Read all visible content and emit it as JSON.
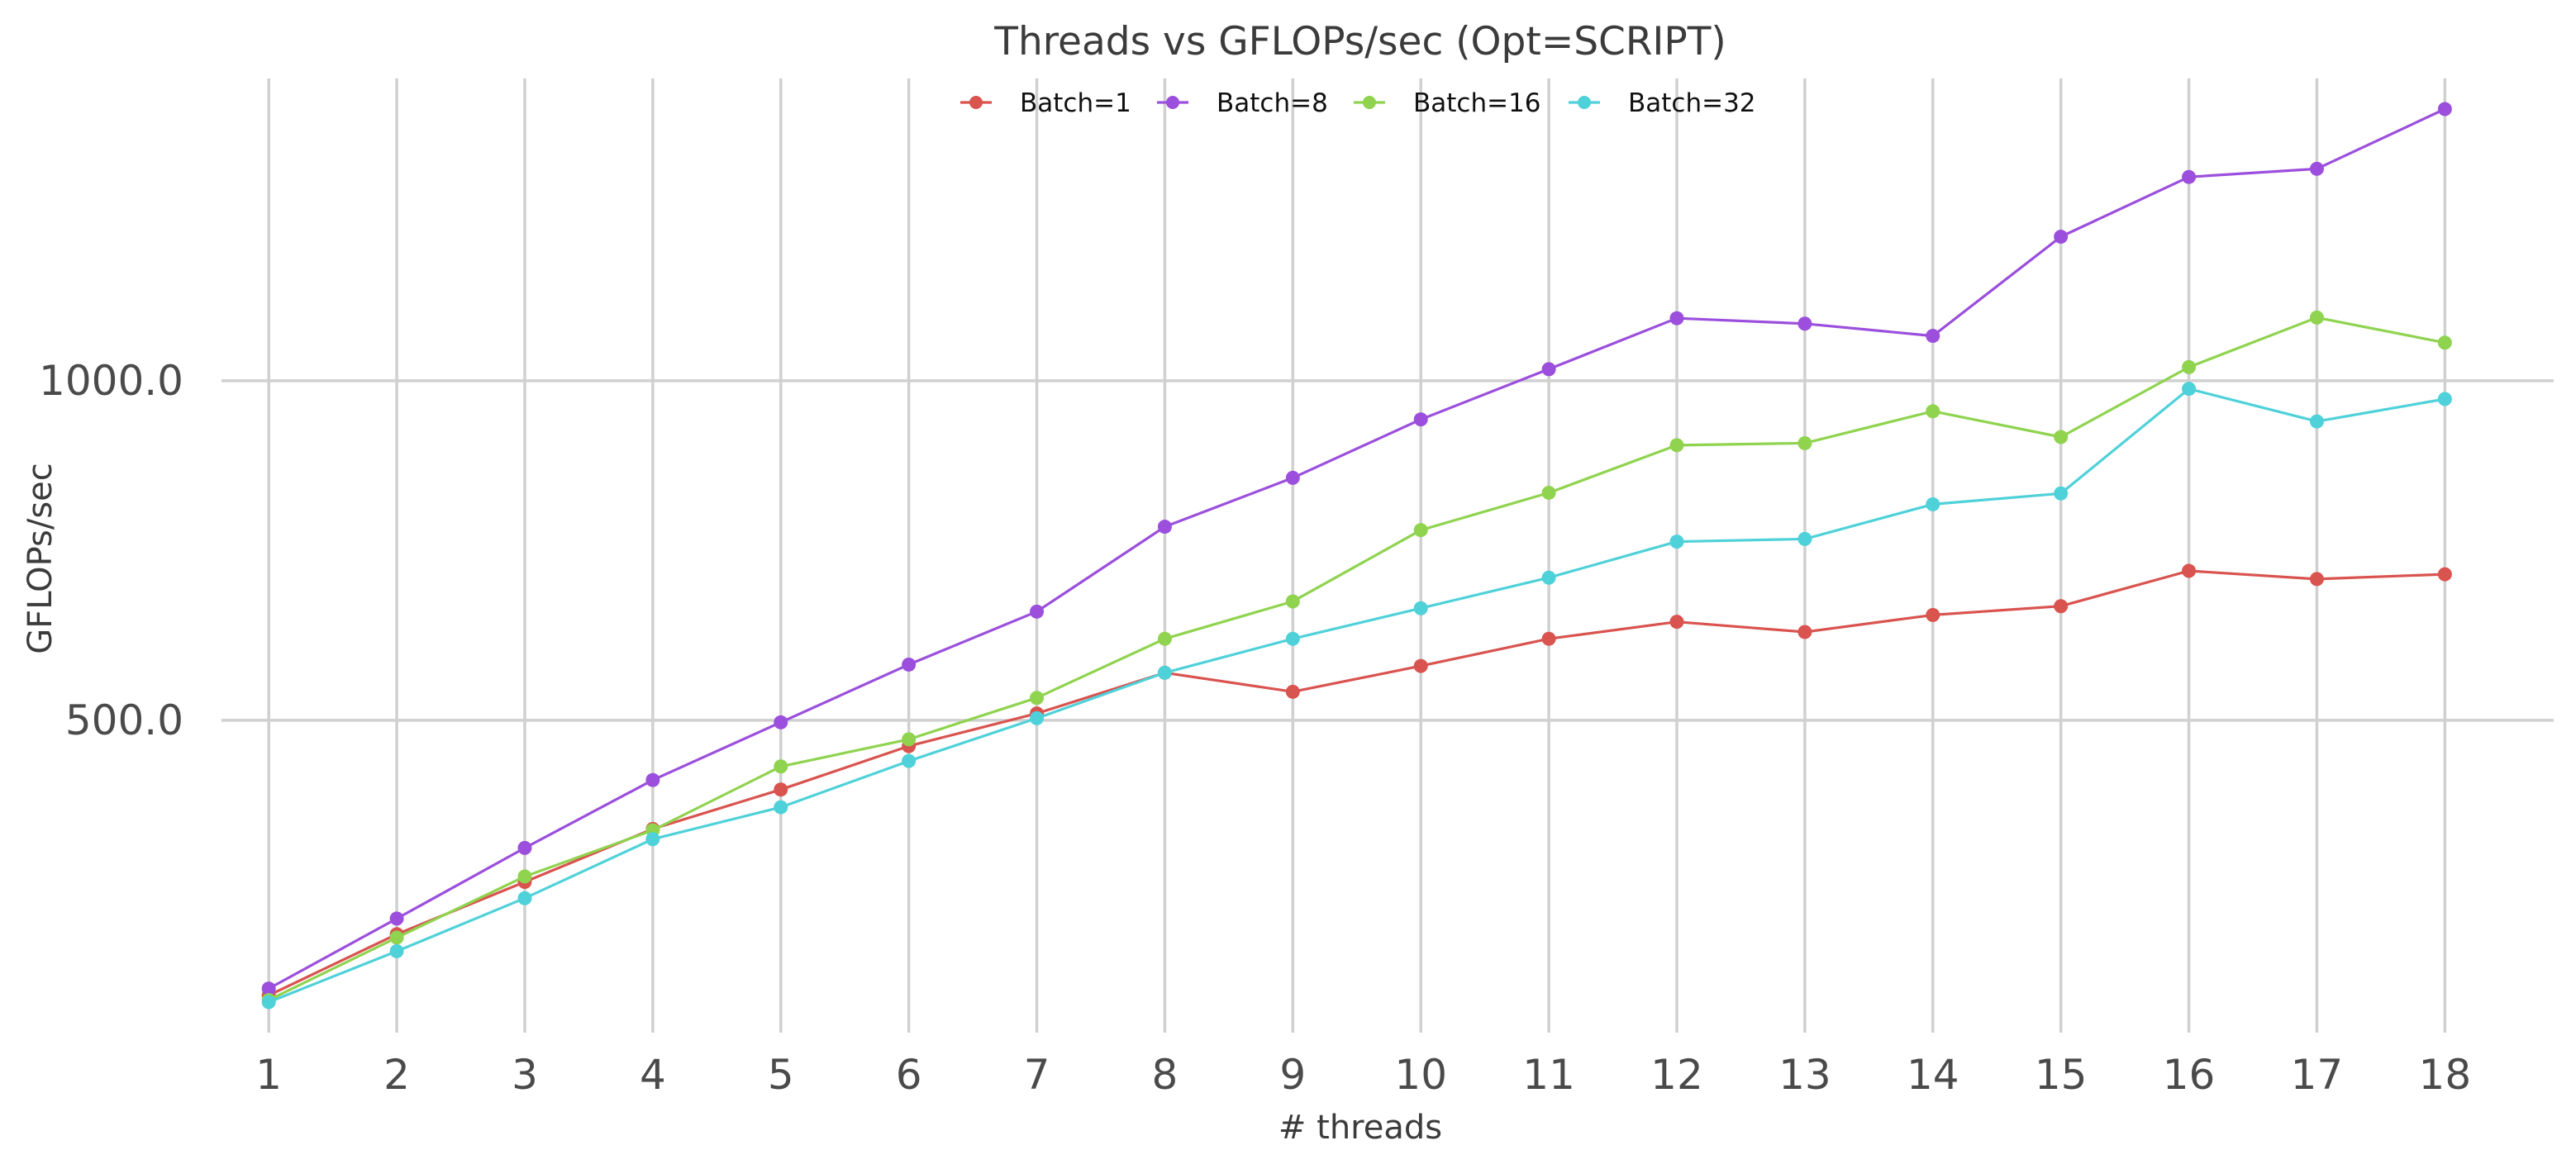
{
  "chart_data": {
    "type": "line",
    "title": "Threads vs GFLOPs/sec (Opt=SCRIPT)",
    "xlabel": "# threads",
    "ylabel": "GFLOPs/sec",
    "x": [
      1,
      2,
      3,
      4,
      5,
      6,
      7,
      8,
      9,
      10,
      11,
      12,
      13,
      14,
      15,
      16,
      17,
      18
    ],
    "xticks": [
      "1",
      "2",
      "3",
      "4",
      "5",
      "6",
      "7",
      "8",
      "9",
      "10",
      "11",
      "12",
      "13",
      "14",
      "15",
      "16",
      "17",
      "18"
    ],
    "yticks": [
      500,
      1000
    ],
    "ytick_labels": [
      "500.0",
      "1000.0"
    ],
    "ylim": [
      40,
      1445
    ],
    "xlim": [
      0.45,
      18.85
    ],
    "grid": true,
    "legend_position": "top-center",
    "series": [
      {
        "name": "Batch=1",
        "color": "#d9534f",
        "values": [
          95,
          185,
          262,
          340,
          398,
          462,
          510,
          570,
          542,
          580,
          620,
          645,
          630,
          655,
          668,
          720,
          708,
          715
        ]
      },
      {
        "name": "Batch=8",
        "color": "#9b4fdc",
        "values": [
          105,
          208,
          312,
          412,
          497,
          582,
          660,
          785,
          857,
          943,
          1017,
          1092,
          1084,
          1066,
          1212,
          1300,
          1312,
          1400
        ]
      },
      {
        "name": "Batch=16",
        "color": "#8fd34f",
        "values": [
          88,
          180,
          270,
          338,
          432,
          472,
          533,
          620,
          675,
          780,
          835,
          905,
          908,
          955,
          917,
          1020,
          1093,
          1056
        ]
      },
      {
        "name": "Batch=32",
        "color": "#4fd1d9",
        "values": [
          85,
          160,
          238,
          325,
          372,
          440,
          503,
          570,
          620,
          665,
          710,
          763,
          767,
          818,
          834,
          988,
          940,
          973
        ]
      }
    ]
  }
}
